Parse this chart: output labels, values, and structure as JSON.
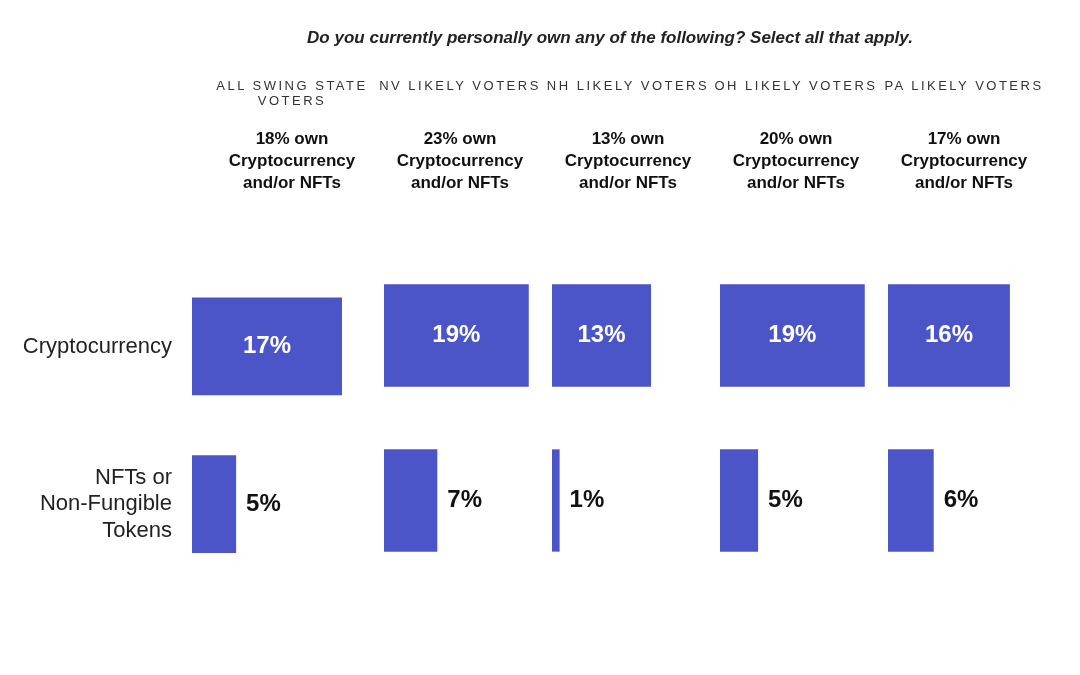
{
  "chart_data": [
    {
      "type": "bar",
      "orientation": "horizontal",
      "annotations": [
        "Do you currently personally own any of the following? Select all that apply."
      ],
      "title": "ALL SWING STATE VOTERS",
      "subtitle": "18% own Cryptocurrency and/or NFTs",
      "categories": [
        "Cryptocurrency",
        "NFTs or Non-Fungible Tokens"
      ],
      "values": [
        17,
        5
      ],
      "value_labels": [
        "17%",
        "5%"
      ],
      "color": "#4b55c8",
      "tick_labels": "y"
    },
    {
      "type": "bar",
      "orientation": "horizontal",
      "title": "NV LIKELY VOTERS",
      "subtitle": "23% own Cryptocurrency and/or NFTs",
      "categories": [
        null,
        null
      ],
      "values": [
        19,
        7
      ],
      "value_labels": [
        "19%",
        "7%"
      ],
      "color": "#4b55c8",
      "tick_labels": false
    },
    {
      "type": "bar",
      "orientation": "horizontal",
      "title": "NH LIKELY VOTERS",
      "subtitle": "13% own Cryptocurrency and/or NFTs",
      "categories": [
        null,
        null
      ],
      "values": [
        13,
        1
      ],
      "value_labels": [
        "13%",
        "1%"
      ],
      "color": "#4b55c8",
      "tick_labels": false
    },
    {
      "type": "bar",
      "orientation": "horizontal",
      "title": "OH LIKELY VOTERS",
      "subtitle": "20% own Cryptocurrency and/or NFTs",
      "categories": [
        null,
        null
      ],
      "values": [
        19,
        5
      ],
      "value_labels": [
        "19%",
        "5%"
      ],
      "color": "#4b55c8",
      "tick_labels": false
    },
    {
      "type": "bar",
      "orientation": "horizontal",
      "title": "PA LIKELY VOTERS",
      "subtitle": "17% own Cryptocurrency and/or NFTs",
      "categories": [
        null,
        null
      ],
      "values": [
        16,
        6
      ],
      "value_labels": [
        "16%",
        "6%"
      ],
      "color": "#4b55c8",
      "tick_labels": false
    }
  ]
}
